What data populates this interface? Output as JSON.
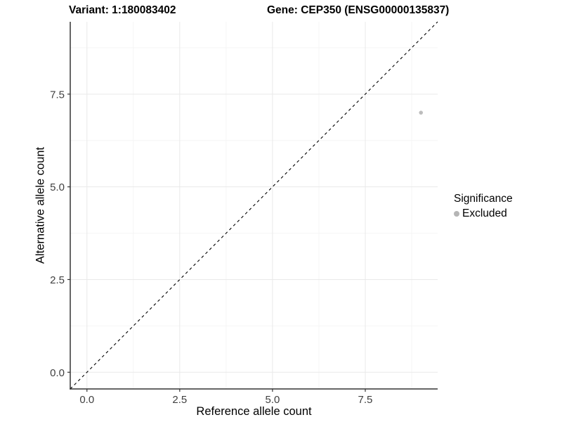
{
  "titles": {
    "variant": "Variant: 1:180083402",
    "gene": "Gene: CEP350 (ENSG00000135837)"
  },
  "chart_data": {
    "type": "scatter",
    "xlabel": "Reference allele count",
    "ylabel": "Alternative allele count",
    "xlim": [
      -0.45,
      9.45
    ],
    "ylim": [
      -0.45,
      9.45
    ],
    "x_ticks": [
      0.0,
      2.5,
      5.0,
      7.5
    ],
    "x_tick_labels": [
      "0.0",
      "2.5",
      "5.0",
      "7.5"
    ],
    "x_minor_ticks": [
      1.25,
      3.75,
      6.25,
      8.75
    ],
    "y_ticks": [
      0.0,
      2.5,
      5.0,
      7.5
    ],
    "y_tick_labels": [
      "0.0",
      "2.5",
      "5.0",
      "7.5"
    ],
    "y_minor_ticks": [
      1.25,
      3.75,
      6.25,
      8.75
    ],
    "grid": "major-and-minor",
    "points": [
      {
        "x": 9,
        "y": 7,
        "series": "Excluded"
      }
    ],
    "reference_line": {
      "type": "identity (y = x)",
      "style": "dashed",
      "x1": -0.45,
      "y1": -0.45,
      "x2": 9.45,
      "y2": 9.45
    },
    "legend": {
      "title": "Significance",
      "position": "right",
      "entries": [
        {
          "label": "Excluded",
          "color": "#b5b5b5",
          "marker": "circle"
        }
      ]
    }
  },
  "colors": {
    "background": "#ffffff",
    "grid_major": "#e9e9e9",
    "grid_minor": "#f5f5f5",
    "axis_line": "#333333",
    "tick_label": "#404040",
    "reference_line": "#000000",
    "point": "#bdbdbd"
  }
}
